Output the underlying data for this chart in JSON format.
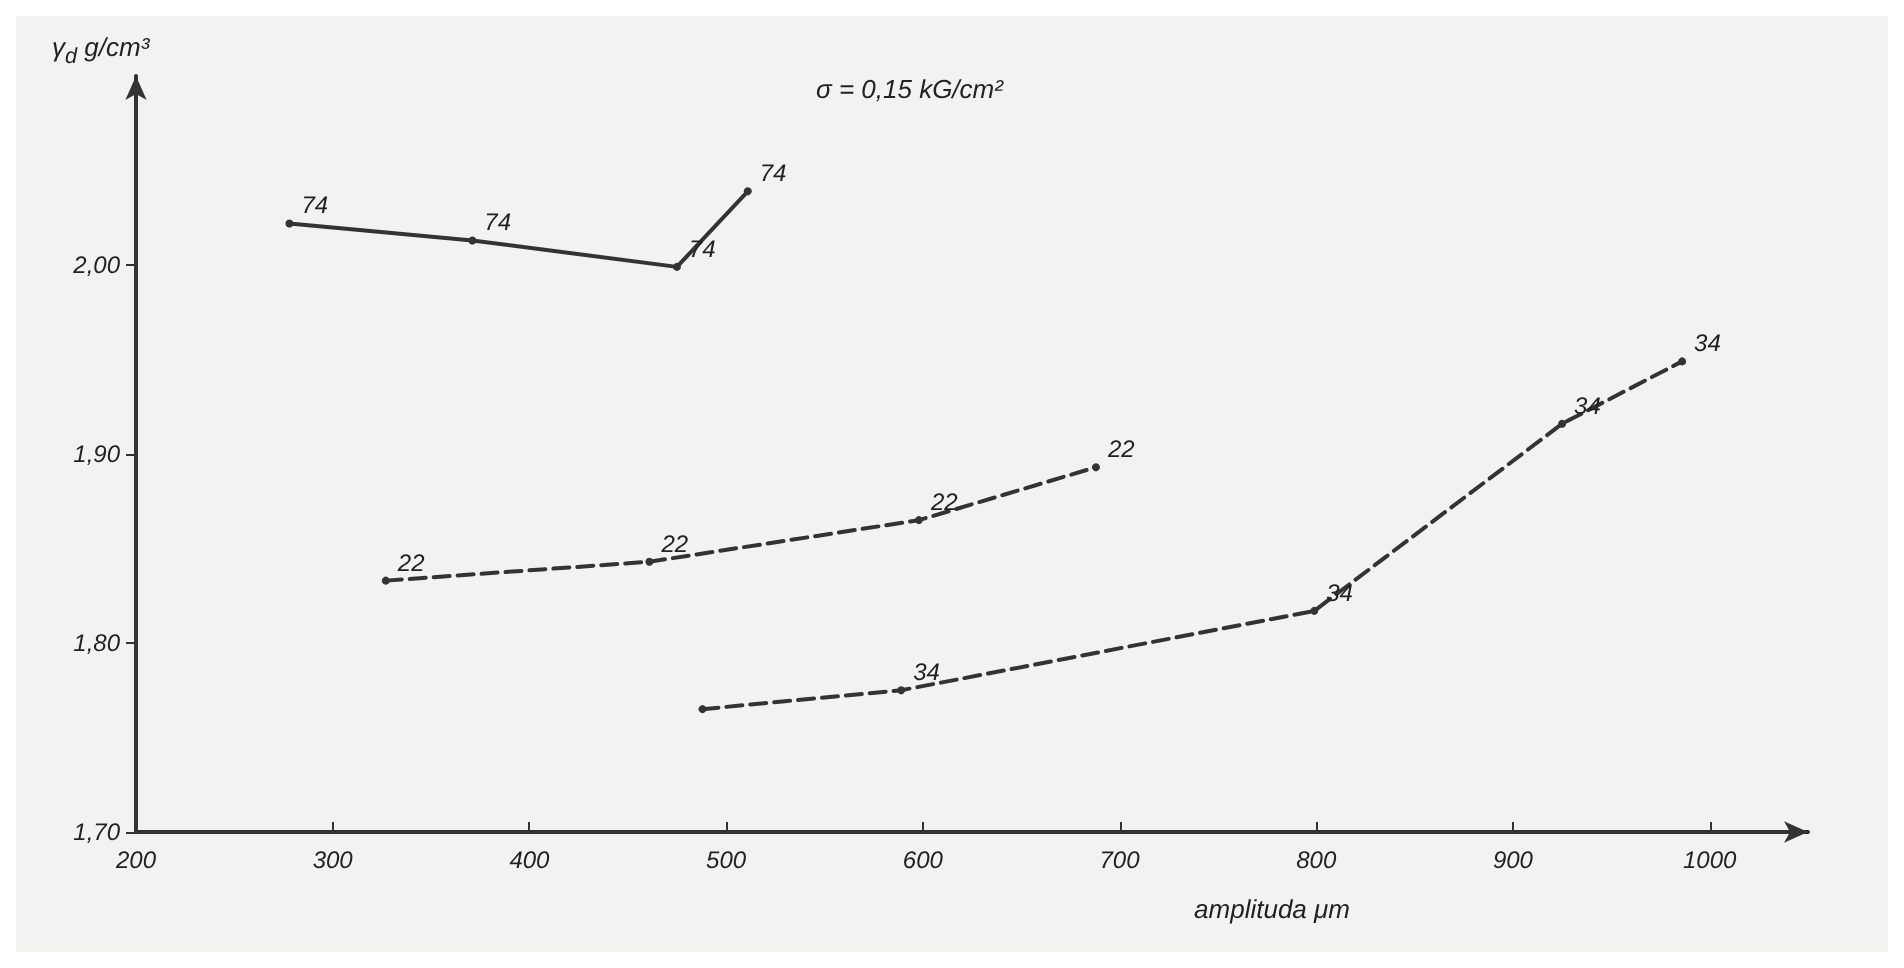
{
  "chart_data": {
    "type": "line",
    "ylabel": "γ$_{d}$ g/cm³",
    "xlabel": "amplituda μm",
    "annotations": [
      "σ = 0,15 kG/cm²",
      {
        "text": "74",
        "x": 278,
        "y": 2.022
      },
      {
        "text": "74",
        "x": 371,
        "y": 2.013
      },
      {
        "text": "74",
        "x": 475,
        "y": 1.999
      },
      {
        "text": "74",
        "x": 511,
        "y": 2.039
      },
      {
        "text": "22",
        "x": 327,
        "y": 1.833
      },
      {
        "text": "22",
        "x": 461,
        "y": 1.843
      },
      {
        "text": "22",
        "x": 598,
        "y": 1.865
      },
      {
        "text": "22",
        "x": 688,
        "y": 1.893
      },
      {
        "text": "34",
        "x": 589,
        "y": 1.775
      },
      {
        "text": "34",
        "x": 799,
        "y": 1.817
      },
      {
        "text": "34",
        "x": 925,
        "y": 1.916
      },
      {
        "text": "34",
        "x": 986,
        "y": 1.949
      }
    ],
    "xlim": [
      200,
      1050
    ],
    "xticks": [
      200,
      300,
      400,
      500,
      600,
      700,
      800,
      900,
      1000
    ],
    "ylim": [
      1.7,
      2.1
    ],
    "yticks": [
      {
        "value": 1.7,
        "label": "1,70"
      },
      {
        "value": 1.8,
        "label": "1,80"
      },
      {
        "value": 1.9,
        "label": "1,90"
      },
      {
        "value": 2.0,
        "label": "2,00"
      }
    ],
    "grid": false,
    "marker": "circle",
    "series": [
      {
        "color": "#333333",
        "line_style": "solid",
        "x": [
          278,
          371,
          475,
          511
        ],
        "values": [
          2.022,
          2.013,
          1.999,
          2.039
        ]
      },
      {
        "color": "#333333",
        "line_style": "dashed",
        "x": [
          327,
          461,
          598,
          688
        ],
        "values": [
          1.833,
          1.843,
          1.865,
          1.893
        ]
      },
      {
        "color": "#333333",
        "line_style": "dashed",
        "x": [
          488,
          589,
          799,
          925,
          986
        ],
        "values": [
          1.765,
          1.775,
          1.817,
          1.916,
          1.949
        ]
      }
    ]
  }
}
